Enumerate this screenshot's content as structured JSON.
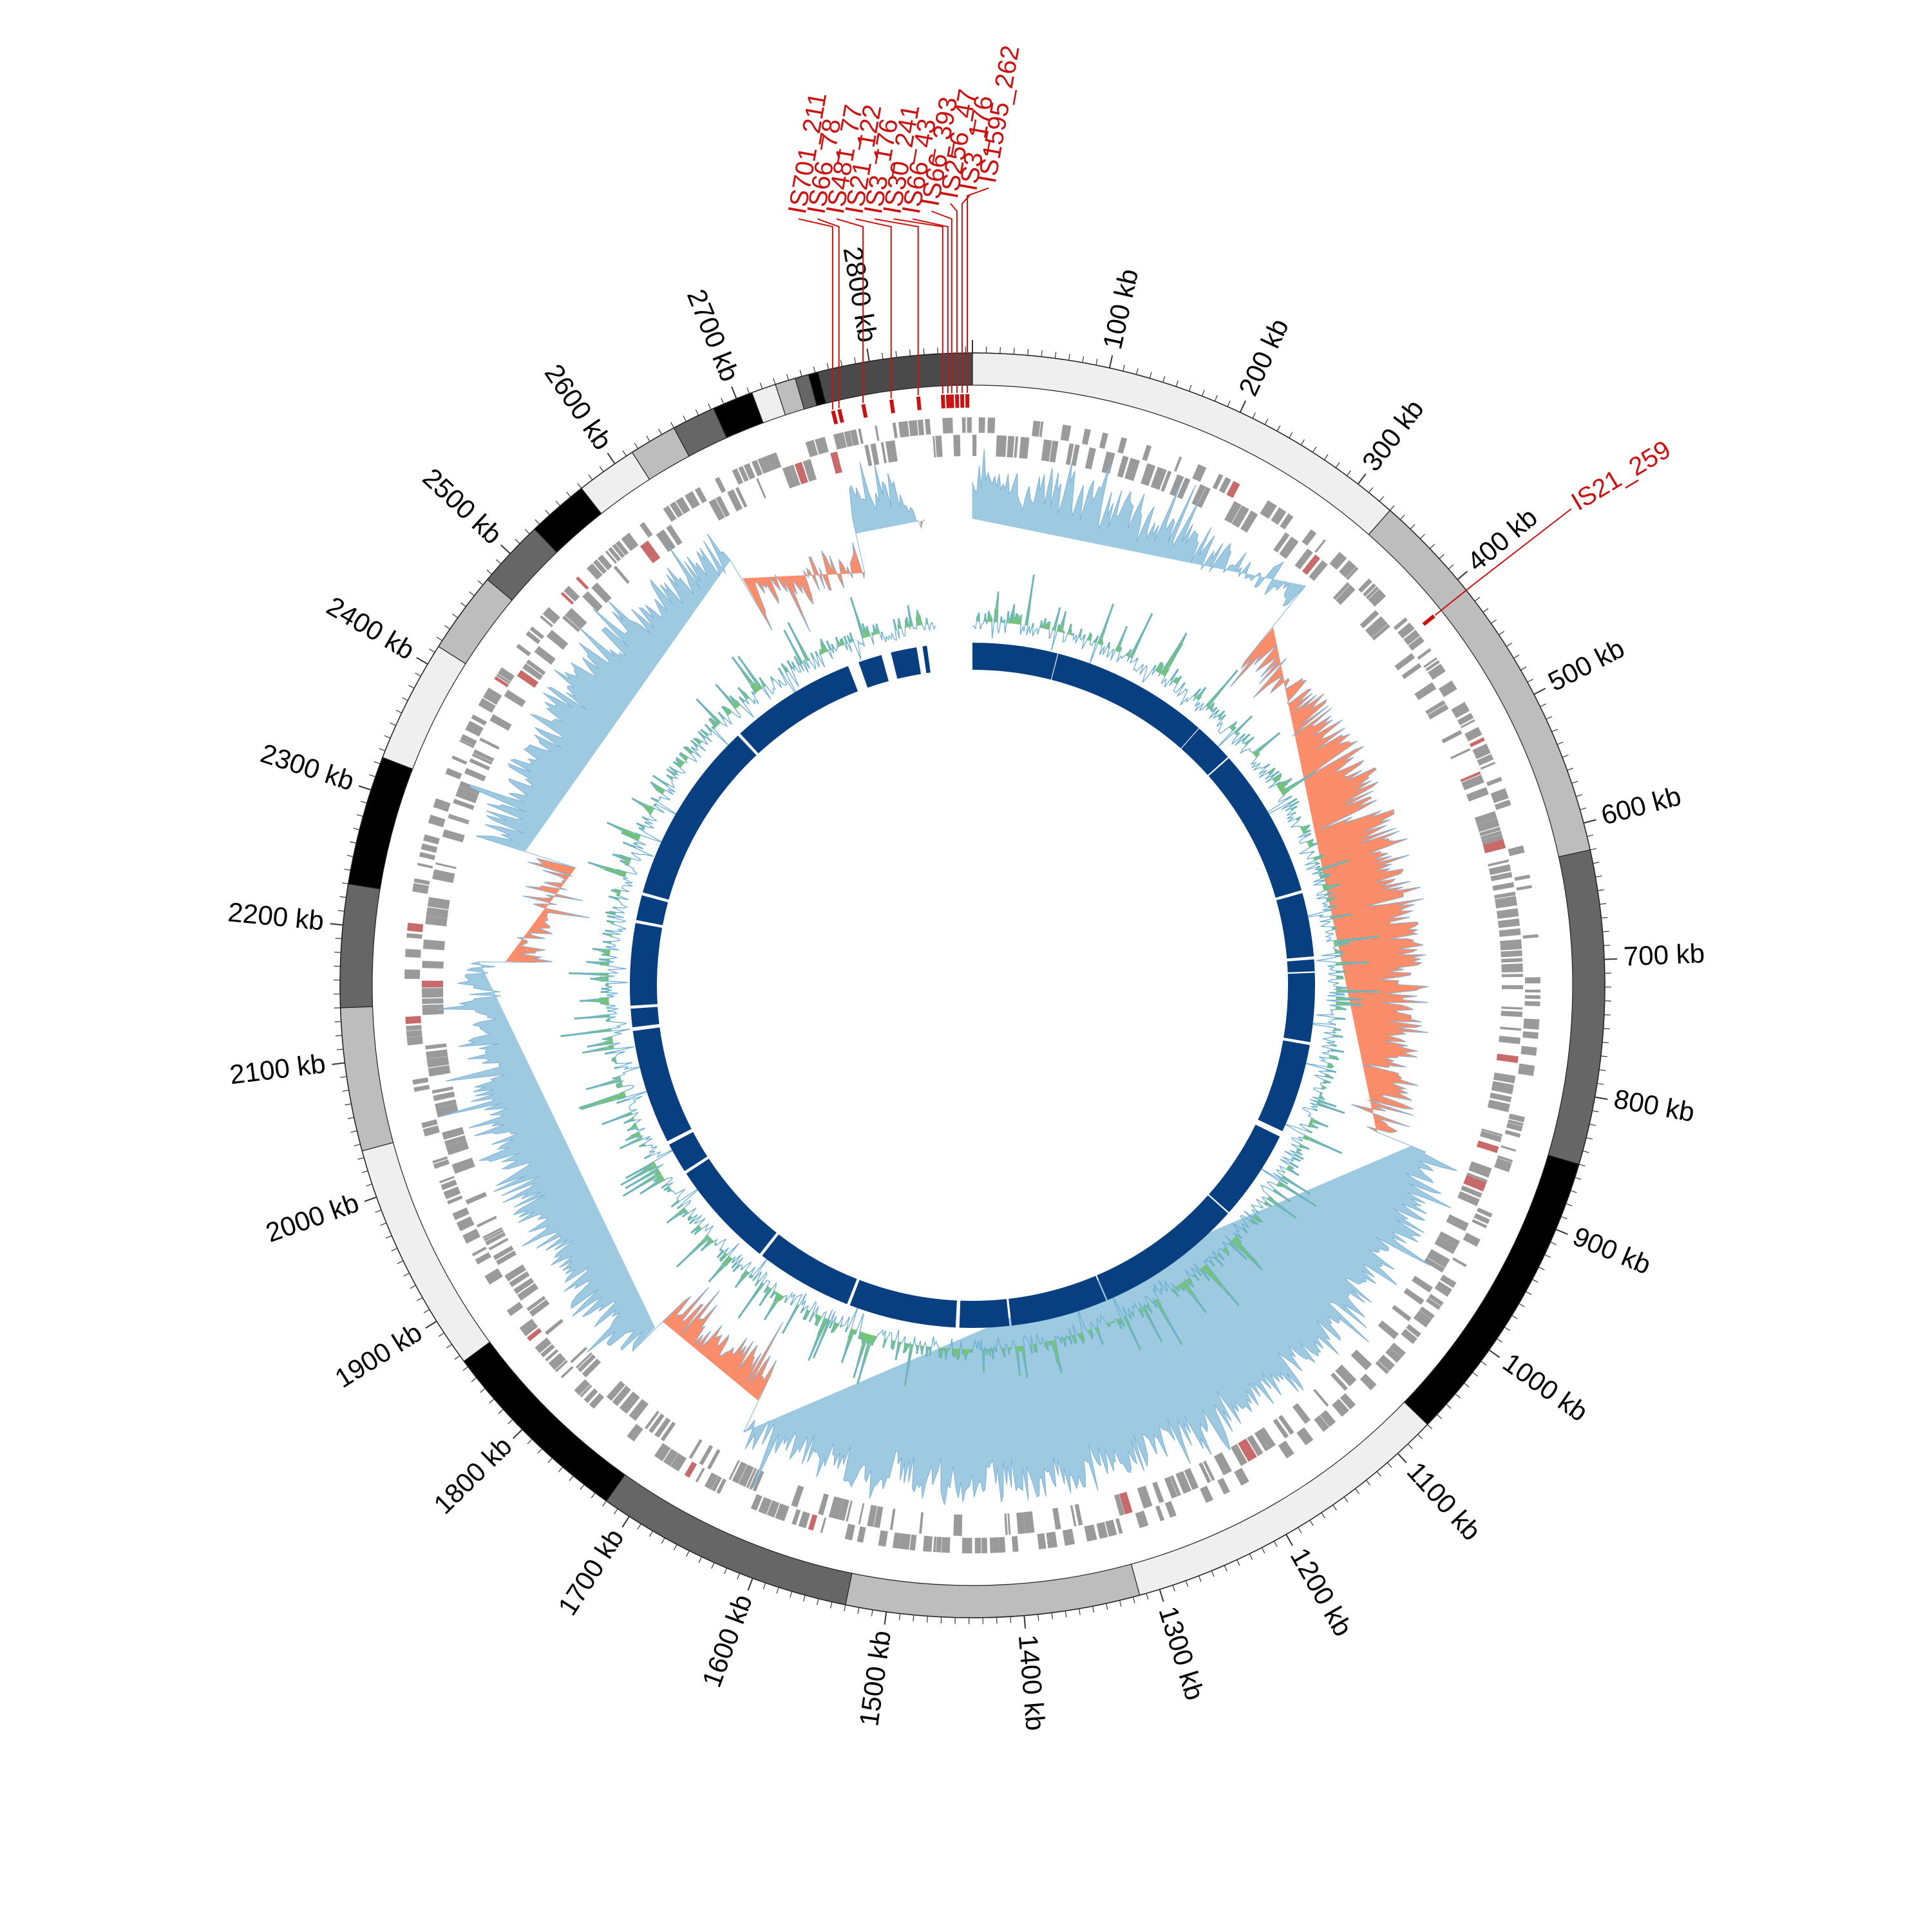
{
  "genome": {
    "length_kb": 2875,
    "label_unit": "kb",
    "position_labels": [
      "100 kb",
      "200 kb",
      "300 kb",
      "400 kb",
      "500 kb",
      "600 kb",
      "700 kb",
      "800 kb",
      "900 kb",
      "1000 kb",
      "1100 kb",
      "1200 kb",
      "1300 kb",
      "1400 kb",
      "1500 kb",
      "1600 kb",
      "1700 kb",
      "1800 kb",
      "1900 kb",
      "2000 kb",
      "2100 kb",
      "2200 kb",
      "2300 kb",
      "2400 kb",
      "2500 kb",
      "2600 kb",
      "2700 kb",
      "2800 kb"
    ],
    "position_values_kb": [
      100,
      200,
      300,
      400,
      500,
      600,
      700,
      800,
      900,
      1000,
      1100,
      1200,
      1300,
      1400,
      1500,
      1600,
      1700,
      1800,
      1900,
      2000,
      2100,
      2200,
      2300,
      2400,
      2500,
      2600,
      2700,
      2800
    ]
  },
  "contigs": [
    {
      "start": 0,
      "end": 330,
      "color": "#efefef"
    },
    {
      "start": 330,
      "end": 620,
      "color": "#bdbdbd"
    },
    {
      "start": 620,
      "end": 850,
      "color": "#666666"
    },
    {
      "start": 850,
      "end": 1070,
      "color": "#000000"
    },
    {
      "start": 1070,
      "end": 1315,
      "color": "#efefef"
    },
    {
      "start": 1315,
      "end": 1530,
      "color": "#bdbdbd"
    },
    {
      "start": 1530,
      "end": 1720,
      "color": "#666666"
    },
    {
      "start": 1720,
      "end": 1865,
      "color": "#000000"
    },
    {
      "start": 1865,
      "end": 2035,
      "color": "#efefef"
    },
    {
      "start": 2035,
      "end": 2140,
      "color": "#bdbdbd"
    },
    {
      "start": 2140,
      "end": 2230,
      "color": "#666666"
    },
    {
      "start": 2230,
      "end": 2325,
      "color": "#000000"
    },
    {
      "start": 2325,
      "end": 2415,
      "color": "#efefef"
    },
    {
      "start": 2415,
      "end": 2475,
      "color": "#bdbdbd"
    },
    {
      "start": 2475,
      "end": 2525,
      "color": "#666666"
    },
    {
      "start": 2525,
      "end": 2570,
      "color": "#000000"
    },
    {
      "start": 2570,
      "end": 2615,
      "color": "#efefef"
    },
    {
      "start": 2615,
      "end": 2650,
      "color": "#bdbdbd"
    },
    {
      "start": 2650,
      "end": 2682,
      "color": "#666666"
    },
    {
      "start": 2682,
      "end": 2712,
      "color": "#000000"
    },
    {
      "start": 2712,
      "end": 2730,
      "color": "#efefef"
    },
    {
      "start": 2730,
      "end": 2745,
      "color": "#bdbdbd"
    },
    {
      "start": 2745,
      "end": 2755,
      "color": "#666666"
    },
    {
      "start": 2755,
      "end": 2762,
      "color": "#000000"
    },
    {
      "start": 2762,
      "end": 2875,
      "color": "#4a4a4a"
    }
  ],
  "is_elements": [
    {
      "label": "IS701_211",
      "pos": 2766
    },
    {
      "label": "IS66_78",
      "pos": 2771
    },
    {
      "label": "IS481_77",
      "pos": 2790
    },
    {
      "label": "IS21_122",
      "pos": 2812
    },
    {
      "label": "IS3_176",
      "pos": 2833
    },
    {
      "label": "IS30_241",
      "pos": 2852
    },
    {
      "label": "IS66_43",
      "pos": 2856
    },
    {
      "label": "IS66_393",
      "pos": 2859
    },
    {
      "label": "IS256_47",
      "pos": 2863
    },
    {
      "label": "IS3_176",
      "pos": 2867
    },
    {
      "label": "IS1595_262",
      "pos": 2871
    },
    {
      "label": "IS21_259",
      "pos": 410
    }
  ],
  "tracks": {
    "gene_color": "#9a9a9a",
    "is_color": "#cc1111",
    "gc_skew_pos_color": "#9ecae1",
    "gc_skew_neg_color": "#fc8d6a",
    "gc_content_color": "#74c476",
    "gc_content_line_color": "#6baed6",
    "blocks_color": "#083f80",
    "skew_sign_regions": [
      {
        "start": 0,
        "end": 320,
        "sign": 1
      },
      {
        "start": 320,
        "end": 880,
        "sign": -1
      },
      {
        "start": 880,
        "end": 1655,
        "sign": 1
      },
      {
        "start": 1655,
        "end": 1780,
        "sign": -1
      },
      {
        "start": 1780,
        "end": 2180,
        "sign": 1
      },
      {
        "start": 2180,
        "end": 2290,
        "sign": -1
      },
      {
        "start": 2290,
        "end": 2640,
        "sign": 1
      },
      {
        "start": 2640,
        "end": 2760,
        "sign": -1
      },
      {
        "start": 2760,
        "end": 2820,
        "sign": 1
      }
    ],
    "data_gap": {
      "start": 2830,
      "end": 2875
    },
    "blocks": [
      {
        "start": 0,
        "end": 115
      },
      {
        "start": 116,
        "end": 330
      },
      {
        "start": 331,
        "end": 385
      },
      {
        "start": 387,
        "end": 590
      },
      {
        "start": 594,
        "end": 680
      },
      {
        "start": 684,
        "end": 700
      },
      {
        "start": 702,
        "end": 795
      },
      {
        "start": 799,
        "end": 920
      },
      {
        "start": 928,
        "end": 1050
      },
      {
        "start": 1052,
        "end": 1252
      },
      {
        "start": 1254,
        "end": 1385
      },
      {
        "start": 1388,
        "end": 1455
      },
      {
        "start": 1460,
        "end": 1605
      },
      {
        "start": 1609,
        "end": 1740
      },
      {
        "start": 1744,
        "end": 1890
      },
      {
        "start": 1894,
        "end": 1935
      },
      {
        "start": 1940,
        "end": 2095
      },
      {
        "start": 2100,
        "end": 2125
      },
      {
        "start": 2129,
        "end": 2240
      },
      {
        "start": 2244,
        "end": 2278
      },
      {
        "start": 2282,
        "end": 2530
      },
      {
        "start": 2534,
        "end": 2705
      },
      {
        "start": 2720,
        "end": 2752
      },
      {
        "start": 2765,
        "end": 2800
      },
      {
        "start": 2808,
        "end": 2814
      }
    ]
  }
}
